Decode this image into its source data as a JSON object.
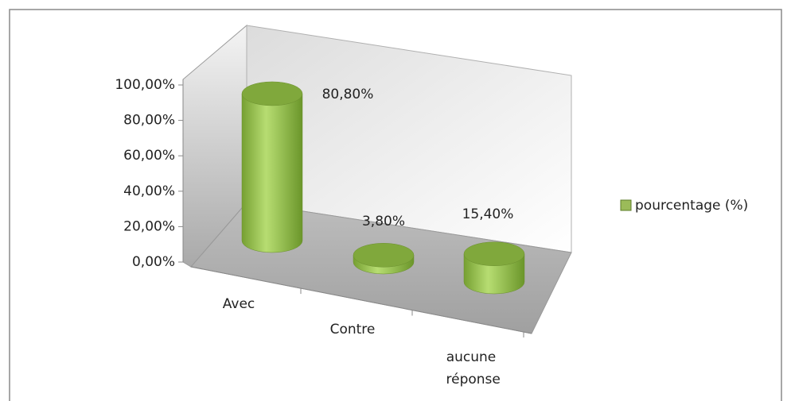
{
  "chart_data": {
    "type": "bar3d",
    "categories": [
      "Avec",
      "Contre",
      "aucune réponse"
    ],
    "series": [
      {
        "name": "pourcentage (%)",
        "color": "#9bbb59",
        "values": [
          80.8,
          3.8,
          15.4
        ],
        "value_labels": [
          "80,80%",
          "3,80%",
          "15,40%"
        ]
      }
    ],
    "ylim": [
      0,
      100
    ],
    "yticks": [
      {
        "value": 0,
        "label": "0,00%"
      },
      {
        "value": 20,
        "label": "20,00%"
      },
      {
        "value": 40,
        "label": "40,00%"
      },
      {
        "value": 60,
        "label": "60,00%"
      },
      {
        "value": 80,
        "label": "80,00%"
      },
      {
        "value": 100,
        "label": "100,00%"
      }
    ],
    "legend": "right"
  }
}
